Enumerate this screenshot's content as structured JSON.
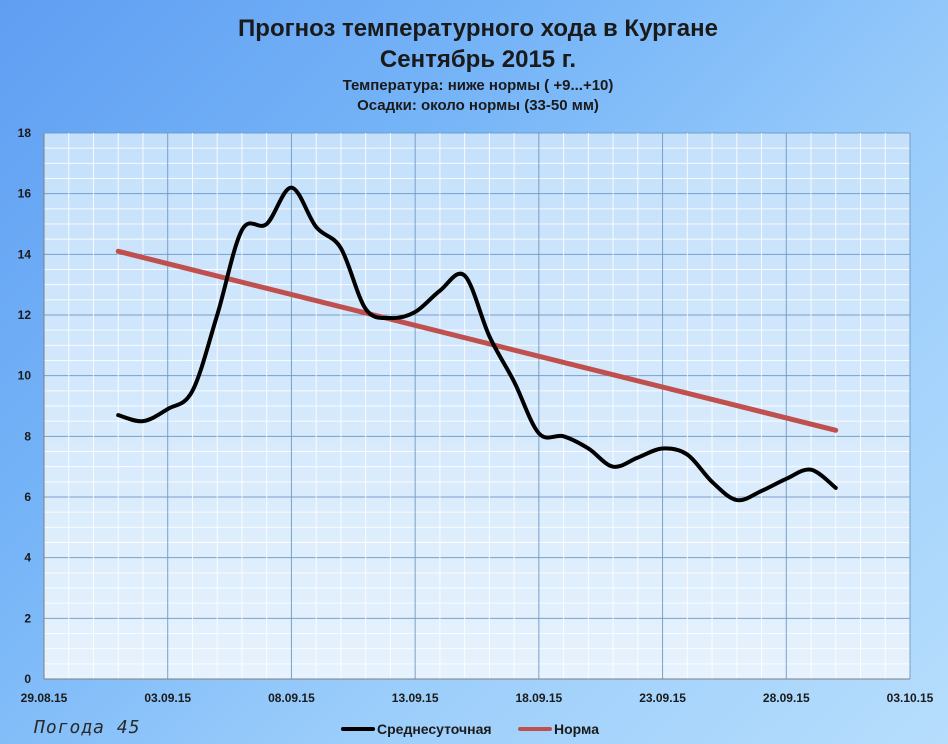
{
  "chart_data": {
    "type": "line",
    "title": "Прогноз температурного хода в Кургане",
    "subtitle": "Сентябрь 2015 г.",
    "notes": [
      "Температура: ниже нормы ( +9...+10)",
      "Осадки: около нормы (33-50 мм)"
    ],
    "xlabel": "",
    "ylabel": "",
    "ylim": [
      0,
      18
    ],
    "y_ticks": [
      0,
      2,
      4,
      6,
      8,
      10,
      12,
      14,
      16,
      18
    ],
    "x_tick_labels": [
      "29.08.15",
      "03.09.15",
      "08.09.15",
      "13.09.15",
      "18.09.15",
      "23.09.15",
      "28.09.15",
      "03.10.15"
    ],
    "grid": true,
    "legend_position": "bottom",
    "series": [
      {
        "name": "Среднесуточная",
        "color": "#000000",
        "x": [
          "01.09.15",
          "02.09.15",
          "03.09.15",
          "04.09.15",
          "05.09.15",
          "06.09.15",
          "07.09.15",
          "08.09.15",
          "09.09.15",
          "10.09.15",
          "11.09.15",
          "12.09.15",
          "13.09.15",
          "14.09.15",
          "15.09.15",
          "16.09.15",
          "17.09.15",
          "18.09.15",
          "19.09.15",
          "20.09.15",
          "21.09.15",
          "22.09.15",
          "23.09.15",
          "24.09.15",
          "25.09.15",
          "26.09.15",
          "27.09.15",
          "28.09.15",
          "29.09.15",
          "30.09.15"
        ],
        "values": [
          8.7,
          8.5,
          8.9,
          9.5,
          12.0,
          14.8,
          15.0,
          16.2,
          14.9,
          14.2,
          12.2,
          11.9,
          12.1,
          12.8,
          13.3,
          11.3,
          9.8,
          8.1,
          8.0,
          7.6,
          7.0,
          7.3,
          7.6,
          7.4,
          6.5,
          5.9,
          6.2,
          6.6,
          6.9,
          6.3
        ]
      },
      {
        "name": "Норма",
        "color": "#c0504d",
        "x": [
          "01.09.15",
          "30.09.15"
        ],
        "values": [
          14.1,
          8.2
        ]
      }
    ]
  },
  "watermark": "Погода 45"
}
